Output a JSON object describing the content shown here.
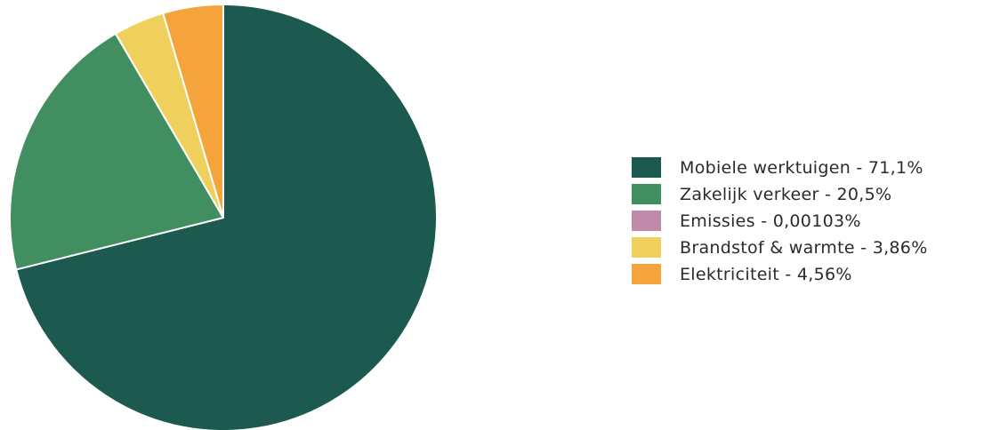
{
  "chart_data": {
    "type": "pie",
    "title": "",
    "start_angle_deg": 0,
    "direction": "clockwise",
    "legend_position": "right",
    "slices": [
      {
        "label": "Mobiele werktuigen - 71,1%",
        "value": 71.1,
        "color": "#1c5a4f"
      },
      {
        "label": "Zakelijk verkeer - 20,5%",
        "value": 20.5,
        "color": "#418f61"
      },
      {
        "label": "Emissies - 0,00103%",
        "value": 0.00103,
        "color": "#c08aaa"
      },
      {
        "label": "Brandstof & warmte - 3,86%",
        "value": 3.86,
        "color": "#f0d05c"
      },
      {
        "label": "Elektriciteit - 4,56%",
        "value": 4.56,
        "color": "#f4a43b"
      }
    ]
  }
}
